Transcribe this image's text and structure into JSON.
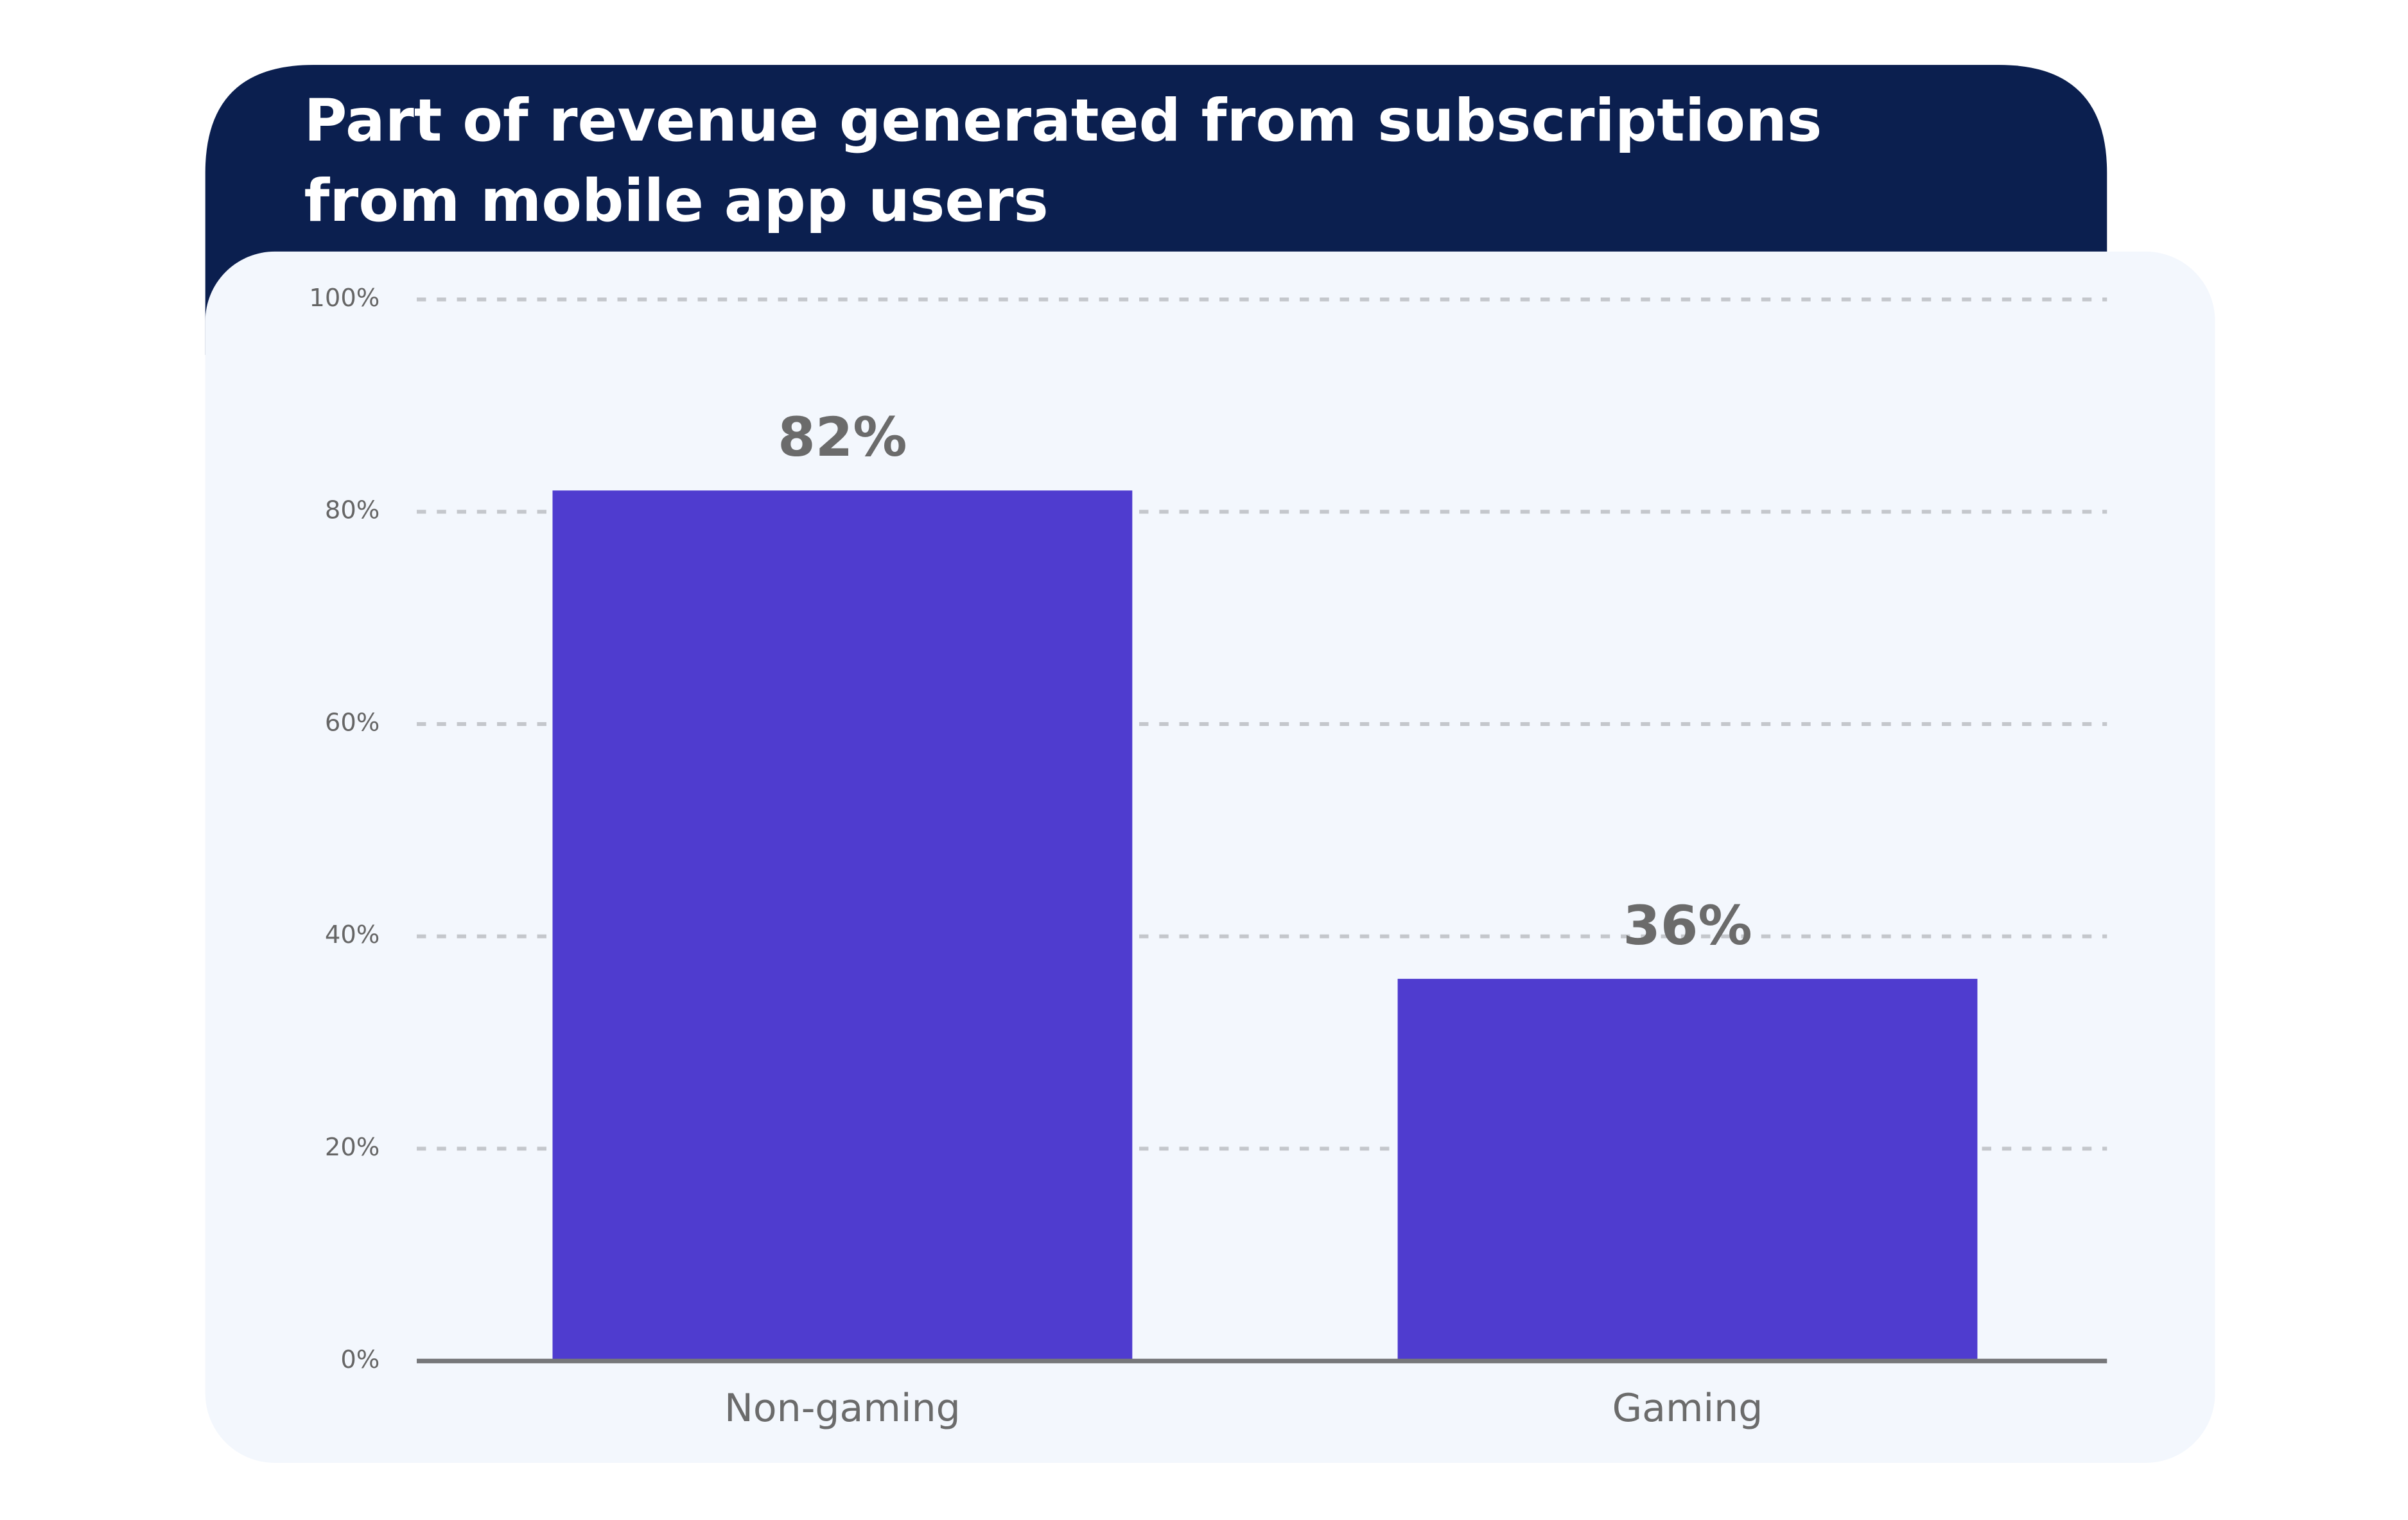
{
  "chart_data": {
    "type": "bar",
    "title": "Part of revenue generated from subscriptions from mobile app users",
    "categories": [
      "Non-gaming",
      "Gaming"
    ],
    "values": [
      82,
      36
    ],
    "value_labels": [
      "82%",
      "36%"
    ],
    "color": "#4f3ccf",
    "ylim": [
      0,
      100
    ],
    "yticks": [
      {
        "value": 0,
        "label": "0%"
      },
      {
        "value": 20,
        "label": "20%"
      },
      {
        "value": 40,
        "label": "40%"
      },
      {
        "value": 60,
        "label": "60%"
      },
      {
        "value": 80,
        "label": "80%"
      },
      {
        "value": 100,
        "label": "100%"
      }
    ],
    "grid": true
  }
}
